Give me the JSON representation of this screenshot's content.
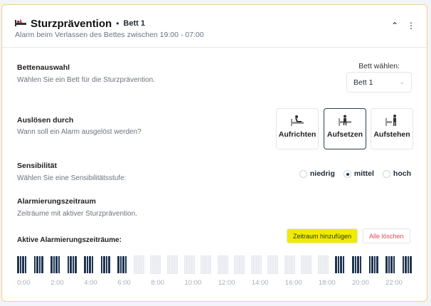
{
  "header": {
    "title": "Sturzprävention",
    "separator": "•",
    "bed": "Bett 1",
    "subtitle": "Alarm beim Verlassen des Bettes zwischen 19:00 - 07:00",
    "icons": [
      "bed-alarm-icon",
      "chevron-up-icon",
      "more-vertical-icon"
    ]
  },
  "bed_selection": {
    "title": "Bettenauswahl",
    "desc": "Wählen Sie ein Bett für die Sturzprävention.",
    "label": "Bett wählen:",
    "value": "Bett 1"
  },
  "trigger": {
    "title": "Auslösen durch",
    "desc": "Wann soll ein Alarm ausgelöst werden?",
    "options": [
      {
        "label": "Aufrichten",
        "selected": false
      },
      {
        "label": "Aufsetzen",
        "selected": true
      },
      {
        "label": "Aufstehen",
        "selected": false
      }
    ]
  },
  "sensitivity": {
    "title": "Sensibilität",
    "desc": "Wählen Sie eine Sensibilitätsstufe:",
    "options": [
      {
        "label": "niedrig",
        "selected": false
      },
      {
        "label": "mittel",
        "selected": true
      },
      {
        "label": "hoch",
        "selected": false
      }
    ]
  },
  "period": {
    "title": "Alarmierungszeitraum",
    "desc": "Zeiträume mit aktiver Sturzprävention.",
    "active_label": "Aktive Alarmierungszeiträume:",
    "add_button": "Zeitraum hinzufügen",
    "clear_button": "Alle löschen"
  },
  "timeline": {
    "active_hours": [
      0,
      1,
      2,
      3,
      4,
      5,
      6,
      19,
      20,
      21,
      22,
      23
    ],
    "ticks": [
      "0:00",
      "2:00",
      "4:00",
      "6:00",
      "8:00",
      "10:00",
      "12:00",
      "14:00",
      "16:00",
      "18:00",
      "20:00",
      "22:00"
    ],
    "active_color": "#1e3350",
    "inactive_color": "#eef0f4"
  }
}
